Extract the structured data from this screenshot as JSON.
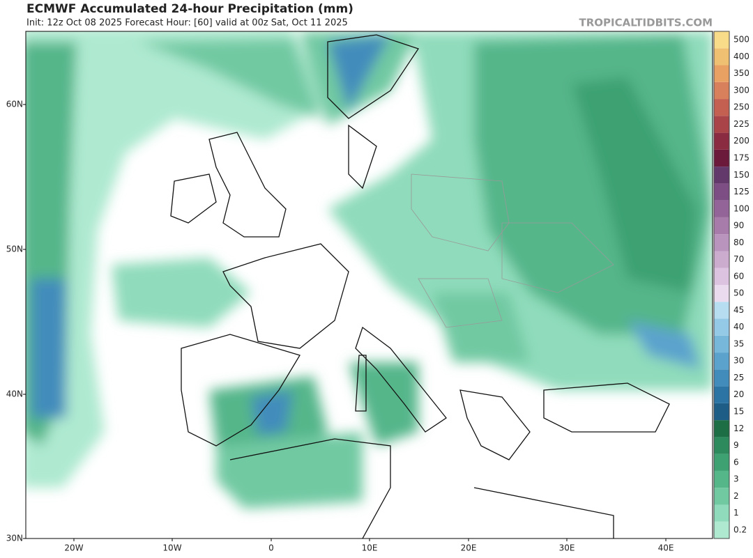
{
  "header": {
    "title": "ECMWF Accumulated 24-hour Precipitation (mm)",
    "subtitle": "Init: 12z Oct 08 2025   Forecast Hour: [60]   valid at 00z Sat, Oct 11 2025",
    "watermark": "TROPICALTIDBITS.COM"
  },
  "map": {
    "lat_labels": [
      "60N",
      "50N",
      "40N",
      "30N"
    ],
    "lon_labels": [
      "20W",
      "10W",
      "0",
      "10E",
      "20E",
      "30E",
      "40E"
    ]
  },
  "colorbar": {
    "levels": [
      {
        "label": "0.2",
        "color": "#aee9d0"
      },
      {
        "label": "1",
        "color": "#8fdbbb"
      },
      {
        "label": "2",
        "color": "#71c9a2"
      },
      {
        "label": "3",
        "color": "#55b68a"
      },
      {
        "label": "6",
        "color": "#3ea172"
      },
      {
        "label": "9",
        "color": "#2c8a5c"
      },
      {
        "label": "12",
        "color": "#1d6e45"
      },
      {
        "label": "15",
        "color": "#1e5d86"
      },
      {
        "label": "20",
        "color": "#2b74a4"
      },
      {
        "label": "25",
        "color": "#428cbc"
      },
      {
        "label": "30",
        "color": "#5ba3cd"
      },
      {
        "label": "35",
        "color": "#77b7da"
      },
      {
        "label": "40",
        "color": "#94cae6"
      },
      {
        "label": "45",
        "color": "#b7ddf1"
      },
      {
        "label": "50",
        "color": "#eadcee"
      },
      {
        "label": "60",
        "color": "#dcc4e0"
      },
      {
        "label": "70",
        "color": "#cbaccf"
      },
      {
        "label": "80",
        "color": "#b994bd"
      },
      {
        "label": "90",
        "color": "#a77cab"
      },
      {
        "label": "100",
        "color": "#936497"
      },
      {
        "label": "125",
        "color": "#7c4e83"
      },
      {
        "label": "150",
        "color": "#63386b"
      },
      {
        "label": "175",
        "color": "#6b1a3c"
      },
      {
        "label": "200",
        "color": "#8b2b42"
      },
      {
        "label": "225",
        "color": "#a94548"
      },
      {
        "label": "250",
        "color": "#c46052"
      },
      {
        "label": "300",
        "color": "#d8805c"
      },
      {
        "label": "350",
        "color": "#e8a063"
      },
      {
        "label": "400",
        "color": "#f0c072"
      },
      {
        "label": "500",
        "color": "#f8dc8a"
      }
    ]
  }
}
